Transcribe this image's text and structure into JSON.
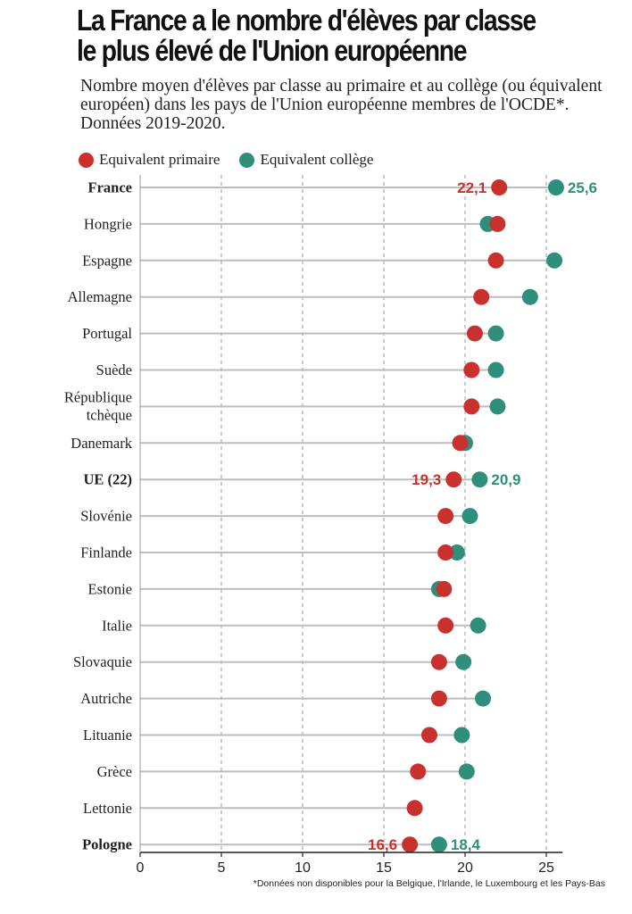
{
  "header": {
    "title_line1": "La France a le nombre d'élèves par classe",
    "title_line2": "le plus élevé de l'Union européenne",
    "subtitle": "Nombre moyen d'élèves par classe au primaire et au collège (ou équivalent européen) dans les pays de l'Union européenne membres de l'OCDE*. Données 2019-2020."
  },
  "footnote": "*Données non disponibles pour la Belgique, l'Irlande, le Luxembourg et les Pays-Bas",
  "colors": {
    "primaire": "#c8312e",
    "college": "#2f8f7b",
    "line": "#bdbdbd",
    "grid": "#9a9a9a"
  },
  "chart_data": {
    "type": "scatter",
    "title": "La France a le nombre d'élèves par classe le plus élevé de l'Union européenne",
    "xlim": [
      0,
      27
    ],
    "xticks": [
      0,
      5,
      10,
      15,
      20,
      25
    ],
    "grid": true,
    "legend_position": "top-left",
    "series": [
      {
        "name": "Equivalent primaire",
        "color": "#c8312e",
        "values": [
          22.1,
          22.0,
          21.9,
          21.0,
          20.6,
          20.4,
          20.4,
          19.7,
          19.3,
          18.8,
          18.8,
          18.7,
          18.8,
          18.4,
          18.4,
          17.8,
          17.1,
          16.9,
          16.6
        ]
      },
      {
        "name": "Equivalent collège",
        "color": "#2f8f7b",
        "values": [
          25.6,
          21.4,
          25.5,
          24.0,
          21.9,
          21.9,
          22.0,
          20.0,
          20.9,
          20.3,
          19.5,
          18.4,
          20.8,
          19.9,
          21.1,
          19.8,
          20.1,
          null,
          18.4
        ]
      }
    ],
    "categories": [
      {
        "label": [
          "France"
        ],
        "bold": true,
        "labels": [
          "22,1",
          "25,6"
        ]
      },
      {
        "label": [
          "Hongrie"
        ]
      },
      {
        "label": [
          "Espagne"
        ]
      },
      {
        "label": [
          "Allemagne"
        ]
      },
      {
        "label": [
          "Portugal"
        ]
      },
      {
        "label": [
          "Suède"
        ]
      },
      {
        "label": [
          "République",
          "tchèque"
        ]
      },
      {
        "label": [
          "Danemark"
        ]
      },
      {
        "label": [
          "UE (22)"
        ],
        "bold": true,
        "labels": [
          "19,3",
          "20,9"
        ]
      },
      {
        "label": [
          "Slovénie"
        ]
      },
      {
        "label": [
          "Finlande"
        ]
      },
      {
        "label": [
          "Estonie"
        ]
      },
      {
        "label": [
          "Italie"
        ]
      },
      {
        "label": [
          "Slovaquie"
        ]
      },
      {
        "label": [
          "Autriche"
        ]
      },
      {
        "label": [
          "Lituanie"
        ]
      },
      {
        "label": [
          "Grèce"
        ]
      },
      {
        "label": [
          "Lettonie"
        ]
      },
      {
        "label": [
          "Pologne"
        ],
        "bold": true,
        "labels": [
          "16,6",
          "18,4"
        ]
      }
    ]
  }
}
